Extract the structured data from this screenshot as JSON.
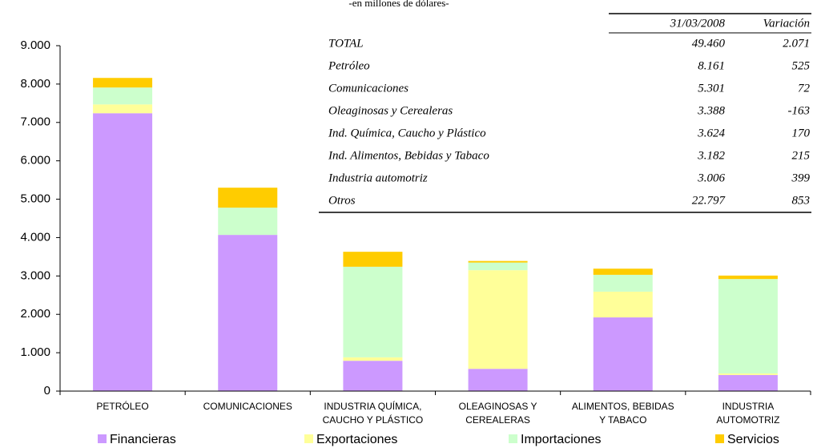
{
  "chart_data": {
    "type": "stacked_bar",
    "subtitle": "-en millones de dólares-",
    "categories": [
      "PETRÓLEO",
      "COMUNICACIONES",
      "INDUSTRIA QUÍMICA,\nCAUCHO Y PLÁSTICO",
      "OLEAGINOSAS Y\nCEREALERAS",
      "ALIMENTOS, BEBIDAS\nY TABACO",
      "INDUSTRIA\nAUTOMOTRIZ"
    ],
    "series": [
      {
        "name": "Financieras",
        "color": "#cc99ff",
        "values": [
          7240,
          4070,
          790,
          580,
          1920,
          420
        ]
      },
      {
        "name": "Exportaciones",
        "color": "#ffff99",
        "values": [
          230,
          0,
          90,
          2570,
          670,
          40
        ]
      },
      {
        "name": "Importaciones",
        "color": "#ccffcc",
        "values": [
          440,
          710,
          2360,
          200,
          440,
          2460
        ]
      },
      {
        "name": "Servicios",
        "color": "#ffcc00",
        "values": [
          250,
          520,
          390,
          40,
          160,
          90
        ]
      }
    ],
    "ylim": [
      0,
      9000
    ],
    "yticks": [
      0,
      {
        "value": 1000,
        "label": "1.000"
      },
      {
        "value": 2000,
        "label": "2.000"
      },
      {
        "value": 3000,
        "label": "3.000"
      },
      {
        "value": 4000,
        "label": "4.000"
      },
      {
        "value": 5000,
        "label": "5.000"
      },
      {
        "value": 6000,
        "label": "6.000"
      },
      {
        "value": 7000,
        "label": "7.000"
      },
      {
        "value": 8000,
        "label": "8.000"
      },
      {
        "value": 9000,
        "label": "9.000"
      }
    ],
    "legend": "bottom",
    "table": {
      "header": [
        "31/03/2008",
        "Variación"
      ],
      "rows": [
        [
          "TOTAL",
          "49.460",
          "2.071"
        ],
        [
          "Petróleo",
          "8.161",
          "525"
        ],
        [
          "Comunicaciones",
          "5.301",
          "72"
        ],
        [
          "Oleaginosas y Cerealeras",
          "3.388",
          "-163"
        ],
        [
          "Ind. Química, Caucho y Plástico",
          "3.624",
          "170"
        ],
        [
          "Ind. Alimentos, Bebidas y Tabaco",
          "3.182",
          "215"
        ],
        [
          "Industria automotriz",
          "3.006",
          "399"
        ],
        [
          "Otros",
          "22.797",
          "853"
        ]
      ]
    }
  }
}
